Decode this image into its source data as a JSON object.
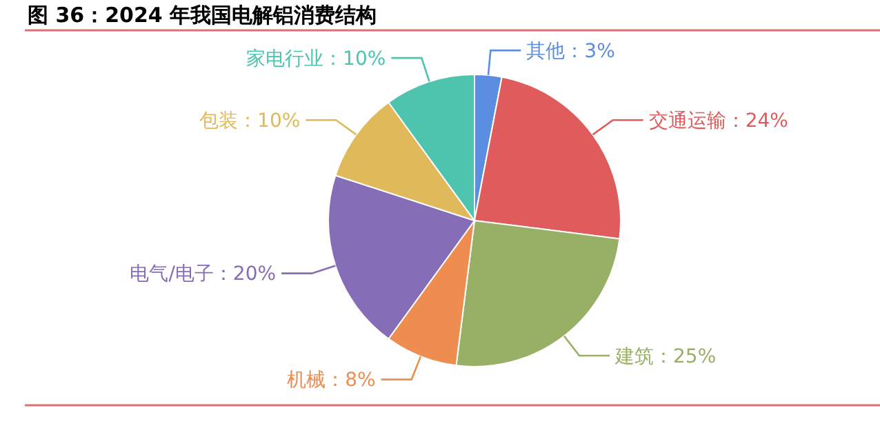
{
  "chart_data": {
    "type": "pie",
    "title": "图 36：2024 年我国电解铝消费结构",
    "categories": [
      "其他",
      "交通运输",
      "建筑",
      "机械",
      "电气/电子",
      "包装",
      "家电行业"
    ],
    "values": [
      3,
      24,
      25,
      8,
      20,
      10,
      10
    ],
    "value_labels": [
      "3%",
      "24%",
      "25%",
      "8%",
      "20%",
      "10%",
      "10%"
    ],
    "colors": [
      "#5b8ee0",
      "#e05c5c",
      "#97b066",
      "#ef8c4f",
      "#866db7",
      "#dfb95a",
      "#4ec3ae"
    ]
  }
}
